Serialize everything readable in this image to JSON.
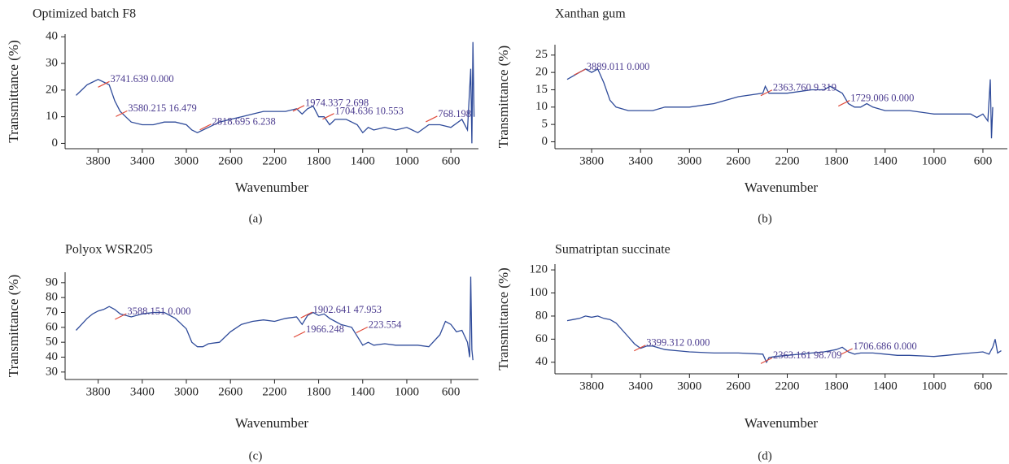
{
  "chart_data": [
    {
      "type": "line",
      "title": "Optimized batch F8",
      "x_label": "Wavenumber",
      "y_label": "Transmittance (%)",
      "caption": "(a)",
      "color": "#2f4b9a",
      "x": [
        4000,
        3950,
        3900,
        3850,
        3800,
        3750,
        3700,
        3650,
        3600,
        3550,
        3500,
        3400,
        3300,
        3200,
        3100,
        3000,
        2950,
        2900,
        2850,
        2800,
        2700,
        2600,
        2500,
        2400,
        2300,
        2200,
        2100,
        2000,
        1950,
        1900,
        1850,
        1800,
        1750,
        1700,
        1650,
        1600,
        1550,
        1500,
        1450,
        1400,
        1350,
        1300,
        1200,
        1100,
        1000,
        900,
        800,
        700,
        600,
        500,
        450,
        420,
        410,
        400,
        390
      ],
      "values": [
        18,
        20,
        22,
        23,
        24,
        23,
        22,
        16,
        12,
        10,
        8,
        7,
        7,
        8,
        8,
        7,
        5,
        4,
        5,
        6,
        8,
        9,
        10,
        11,
        12,
        12,
        12,
        13,
        11,
        13,
        14,
        10,
        10,
        7,
        9,
        9,
        9,
        8,
        7,
        4,
        6,
        5,
        6,
        5,
        6,
        4,
        7,
        7,
        6,
        9,
        5,
        28,
        0,
        38,
        10
      ],
      "xlim": [
        4100,
        350
      ],
      "xticks": [
        3800,
        3400,
        3000,
        2600,
        2200,
        1800,
        1400,
        1000,
        600
      ],
      "ylim": [
        -2,
        41
      ],
      "yticks": [
        0,
        10,
        20,
        30,
        40
      ],
      "annotations": [
        {
          "label": "3741.639 0.000",
          "x": 3741.639,
          "y": 22
        },
        {
          "label": "3580.215 16.479",
          "x": 3580.215,
          "y": 11
        },
        {
          "label": "2818.695 6.238",
          "x": 2818.695,
          "y": 6
        },
        {
          "label": "1974.337 2.698",
          "x": 1974.337,
          "y": 13
        },
        {
          "label": "1704.636 10.553",
          "x": 1704.636,
          "y": 10
        },
        {
          "label": "768.198",
          "x": 768.198,
          "y": 9
        }
      ]
    },
    {
      "type": "line",
      "title": "Xanthan gum",
      "x_label": "Wavenumber",
      "y_label": "Transmittance (%)",
      "caption": "(b)",
      "color": "#2f4b9a",
      "x": [
        4000,
        3950,
        3900,
        3850,
        3800,
        3750,
        3700,
        3650,
        3600,
        3500,
        3400,
        3300,
        3200,
        3000,
        2800,
        2600,
        2400,
        2380,
        2350,
        2200,
        2000,
        1900,
        1850,
        1800,
        1750,
        1700,
        1650,
        1600,
        1550,
        1500,
        1400,
        1200,
        1000,
        900,
        800,
        700,
        650,
        600,
        560,
        540,
        530,
        520
      ],
      "values": [
        18,
        19,
        20,
        21,
        20,
        21,
        17,
        12,
        10,
        9,
        9,
        9,
        10,
        10,
        11,
        13,
        14,
        16,
        14,
        14,
        15,
        15,
        16,
        15,
        14,
        11,
        10,
        10,
        11,
        10,
        9,
        9,
        8,
        8,
        8,
        8,
        7,
        8,
        6,
        18,
        1,
        10
      ],
      "xlim": [
        4100,
        400
      ],
      "xticks": [
        3800,
        3400,
        3000,
        2600,
        2200,
        1800,
        1400,
        1000,
        600
      ],
      "ylim": [
        -2,
        28
      ],
      "yticks": [
        0,
        5,
        10,
        15,
        20,
        25
      ],
      "annotations": [
        {
          "label": "3889.011 0.000",
          "x": 3889.011,
          "y": 20
        },
        {
          "label": "2363.760 9.319",
          "x": 2363.76,
          "y": 14
        },
        {
          "label": "1729.006 0.000",
          "x": 1729.006,
          "y": 11
        }
      ]
    },
    {
      "type": "line",
      "title": "Polyox WSR205",
      "x_label": "Wavenumber",
      "y_label": "Transmittance (%)",
      "caption": "(c)",
      "color": "#2f4b9a",
      "x": [
        4000,
        3950,
        3900,
        3850,
        3800,
        3750,
        3700,
        3650,
        3600,
        3500,
        3400,
        3300,
        3200,
        3100,
        3000,
        2950,
        2900,
        2850,
        2800,
        2700,
        2600,
        2500,
        2400,
        2300,
        2200,
        2100,
        2000,
        1950,
        1900,
        1850,
        1800,
        1750,
        1700,
        1650,
        1600,
        1500,
        1450,
        1400,
        1350,
        1300,
        1200,
        1100,
        1000,
        900,
        800,
        700,
        650,
        600,
        550,
        500,
        450,
        430,
        420,
        410,
        400
      ],
      "values": [
        58,
        62,
        66,
        69,
        71,
        72,
        74,
        72,
        69,
        67,
        69,
        70,
        70,
        66,
        59,
        50,
        47,
        47,
        49,
        50,
        57,
        62,
        64,
        65,
        64,
        66,
        67,
        62,
        68,
        70,
        68,
        69,
        66,
        64,
        62,
        60,
        54,
        48,
        50,
        48,
        49,
        48,
        48,
        48,
        47,
        55,
        64,
        62,
        57,
        58,
        50,
        40,
        94,
        45,
        38
      ],
      "xlim": [
        4100,
        350
      ],
      "xticks": [
        3800,
        3400,
        3000,
        2600,
        2200,
        1800,
        1400,
        1000,
        600
      ],
      "ylim": [
        25,
        97
      ],
      "yticks": [
        30,
        40,
        50,
        60,
        70,
        80,
        90
      ],
      "annotations": [
        {
          "label": "3588.151 0.000",
          "x": 3588.151,
          "y": 67
        },
        {
          "label": "1902.641 47.953",
          "x": 1902.641,
          "y": 68
        },
        {
          "label": "1966.248",
          "x": 1966.248,
          "y": 55
        },
        {
          "label": "223.554",
          "x": 1400,
          "y": 58
        }
      ]
    },
    {
      "type": "line",
      "title": "Sumatriptan succinate",
      "x_label": "Wavenumber",
      "y_label": "Transmittance (%)",
      "caption": "(d)",
      "color": "#2f4b9a",
      "x": [
        4000,
        3950,
        3900,
        3850,
        3800,
        3750,
        3700,
        3650,
        3600,
        3550,
        3500,
        3450,
        3400,
        3350,
        3300,
        3200,
        3100,
        3000,
        2800,
        2600,
        2400,
        2370,
        2350,
        2300,
        2200,
        2000,
        1900,
        1800,
        1750,
        1700,
        1650,
        1600,
        1500,
        1400,
        1300,
        1200,
        1000,
        900,
        800,
        700,
        600,
        550,
        520,
        500,
        480,
        450
      ],
      "values": [
        76,
        77,
        78,
        80,
        79,
        80,
        78,
        77,
        74,
        68,
        62,
        56,
        52,
        54,
        54,
        51,
        50,
        49,
        48,
        48,
        47,
        40,
        44,
        45,
        46,
        48,
        49,
        51,
        53,
        49,
        47,
        48,
        48,
        47,
        46,
        46,
        45,
        46,
        47,
        48,
        49,
        47,
        53,
        60,
        48,
        50
      ],
      "xlim": [
        4100,
        400
      ],
      "xticks": [
        3800,
        3400,
        3000,
        2600,
        2200,
        1800,
        1400,
        1000,
        600
      ],
      "ylim": [
        30,
        125
      ],
      "yticks": [
        40,
        60,
        80,
        100,
        120
      ],
      "annotations": [
        {
          "label": "3399.312 0.000",
          "x": 3399.312,
          "y": 52
        },
        {
          "label": "2363.161 98.709",
          "x": 2363.161,
          "y": 41
        },
        {
          "label": "1706.686 0.000",
          "x": 1706.686,
          "y": 49
        }
      ]
    }
  ]
}
